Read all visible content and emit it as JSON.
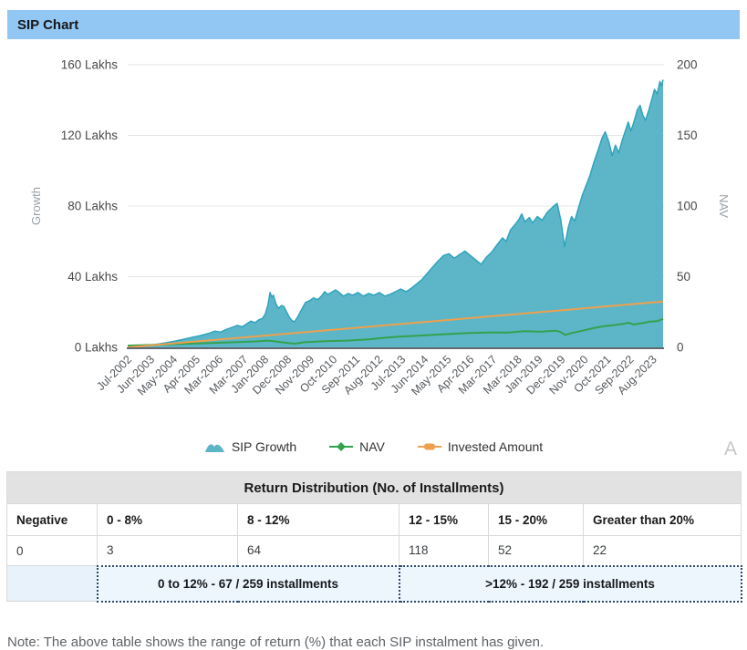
{
  "header": {
    "title": "SIP Chart"
  },
  "watermark": "A",
  "chart_data": {
    "type": "area",
    "title": "SIP Chart",
    "grid": "horizontal-only",
    "legend_position": "bottom-center",
    "colors": {
      "header_bg": "#92c7f3",
      "grid": "#e5e5e5",
      "axis_line": "#62696e",
      "tick_text": "#4a4a4a",
      "x_tick_text": "#55595e",
      "axis_title_text": "#9aa0a6"
    },
    "y_left": {
      "title": "Growth",
      "ticks": [
        "0 Lakhs",
        "40 Lakhs",
        "80 Lakhs",
        "120 Lakhs",
        "160 Lakhs"
      ],
      "tick_values": [
        0,
        40,
        80,
        120,
        160
      ],
      "range": [
        0,
        160
      ]
    },
    "y_right": {
      "title": "NAV",
      "ticks": [
        "0",
        "50",
        "100",
        "150",
        "200"
      ],
      "tick_values": [
        0,
        50,
        100,
        150,
        200
      ],
      "range": [
        0,
        200
      ]
    },
    "x_ticks": {
      "labels": [
        "Jul-2002",
        "Jun-2003",
        "May-2004",
        "Apr-2005",
        "Mar-2006",
        "Mar-2007",
        "Jan-2008",
        "Dec-2008",
        "Nov-2009",
        "Oct-2010",
        "Sep-2011",
        "Aug-2012",
        "Jul-2013",
        "Jun-2014",
        "May-2015",
        "Apr-2016",
        "Mar-2017",
        "Mar-2018",
        "Jan-2019",
        "Dec-2019",
        "Nov-2020",
        "Oct-2021",
        "Sep-2022",
        "Aug-2023"
      ],
      "months": [
        0,
        11,
        22,
        33,
        44,
        56,
        66,
        77,
        88,
        99,
        110,
        121,
        132,
        143,
        154,
        165,
        176,
        188,
        198,
        209,
        220,
        231,
        242,
        253
      ],
      "domain_months": 258
    },
    "series": [
      {
        "name": "SIP Growth",
        "type": "area",
        "axis": "left",
        "color": "#5cb6c8",
        "stroke": "#2fa3bd",
        "unit": "Lakhs",
        "points": [
          [
            0,
            0.2
          ],
          [
            0.02,
            0.6
          ],
          [
            0.04,
            1.2
          ],
          [
            0.06,
            2.0
          ],
          [
            0.075,
            2.8
          ],
          [
            0.09,
            3.6
          ],
          [
            0.105,
            4.6
          ],
          [
            0.12,
            5.6
          ],
          [
            0.135,
            6.6
          ],
          [
            0.15,
            7.8
          ],
          [
            0.163,
            9.2
          ],
          [
            0.173,
            8.6
          ],
          [
            0.185,
            10.2
          ],
          [
            0.196,
            11.4
          ],
          [
            0.205,
            12.4
          ],
          [
            0.214,
            11.6
          ],
          [
            0.222,
            13.2
          ],
          [
            0.23,
            14.8
          ],
          [
            0.238,
            14.0
          ],
          [
            0.245,
            15.6
          ],
          [
            0.252,
            16.4
          ],
          [
            0.257,
            19.0
          ],
          [
            0.262,
            24.0
          ],
          [
            0.266,
            31.0
          ],
          [
            0.269,
            28.5
          ],
          [
            0.272,
            29.5
          ],
          [
            0.277,
            24.5
          ],
          [
            0.282,
            22.0
          ],
          [
            0.287,
            23.7
          ],
          [
            0.292,
            23.0
          ],
          [
            0.297,
            20.0
          ],
          [
            0.302,
            17.0
          ],
          [
            0.307,
            15.1
          ],
          [
            0.312,
            14.5
          ],
          [
            0.318,
            17.5
          ],
          [
            0.325,
            21.5
          ],
          [
            0.332,
            25.4
          ],
          [
            0.34,
            26.5
          ],
          [
            0.347,
            28.0
          ],
          [
            0.355,
            27.0
          ],
          [
            0.362,
            29.0
          ],
          [
            0.368,
            31.5
          ],
          [
            0.374,
            30.0
          ],
          [
            0.38,
            31.0
          ],
          [
            0.388,
            32.5
          ],
          [
            0.395,
            31.0
          ],
          [
            0.403,
            29.0
          ],
          [
            0.412,
            30.5
          ],
          [
            0.42,
            29.5
          ],
          [
            0.43,
            31.0
          ],
          [
            0.44,
            29.0
          ],
          [
            0.45,
            30.5
          ],
          [
            0.46,
            29.5
          ],
          [
            0.47,
            31.0
          ],
          [
            0.48,
            29.0
          ],
          [
            0.49,
            30.0
          ],
          [
            0.5,
            31.5
          ],
          [
            0.51,
            33.0
          ],
          [
            0.52,
            31.5
          ],
          [
            0.53,
            33.5
          ],
          [
            0.54,
            36.0
          ],
          [
            0.55,
            38.5
          ],
          [
            0.56,
            42.0
          ],
          [
            0.57,
            45.5
          ],
          [
            0.58,
            49.0
          ],
          [
            0.59,
            52.0
          ],
          [
            0.6,
            53.0
          ],
          [
            0.61,
            50.5
          ],
          [
            0.62,
            52.5
          ],
          [
            0.63,
            54.5
          ],
          [
            0.64,
            52.0
          ],
          [
            0.65,
            49.5
          ],
          [
            0.66,
            47.0
          ],
          [
            0.67,
            51.0
          ],
          [
            0.68,
            54.0
          ],
          [
            0.69,
            58.0
          ],
          [
            0.7,
            62.0
          ],
          [
            0.707,
            60.0
          ],
          [
            0.715,
            66.5
          ],
          [
            0.722,
            69.0
          ],
          [
            0.73,
            72.0
          ],
          [
            0.736,
            75.5
          ],
          [
            0.742,
            71.0
          ],
          [
            0.75,
            73.5
          ],
          [
            0.756,
            70.5
          ],
          [
            0.765,
            74.0
          ],
          [
            0.774,
            72.0
          ],
          [
            0.784,
            76.5
          ],
          [
            0.794,
            79.5
          ],
          [
            0.802,
            81.5
          ],
          [
            0.809,
            72.0
          ],
          [
            0.816,
            57.0
          ],
          [
            0.823,
            68.0
          ],
          [
            0.829,
            74.0
          ],
          [
            0.835,
            71.5
          ],
          [
            0.842,
            79.0
          ],
          [
            0.849,
            86.0
          ],
          [
            0.856,
            91.5
          ],
          [
            0.863,
            97.0
          ],
          [
            0.871,
            105.0
          ],
          [
            0.879,
            112.0
          ],
          [
            0.886,
            118.5
          ],
          [
            0.892,
            122.0
          ],
          [
            0.899,
            116.0
          ],
          [
            0.905,
            108.5
          ],
          [
            0.911,
            114.5
          ],
          [
            0.917,
            110.0
          ],
          [
            0.924,
            117.5
          ],
          [
            0.93,
            123.0
          ],
          [
            0.935,
            127.5
          ],
          [
            0.94,
            122.5
          ],
          [
            0.946,
            128.0
          ],
          [
            0.952,
            134.5
          ],
          [
            0.957,
            137.0
          ],
          [
            0.962,
            131.5
          ],
          [
            0.967,
            128.5
          ],
          [
            0.973,
            134.0
          ],
          [
            0.979,
            140.5
          ],
          [
            0.984,
            146.0
          ],
          [
            0.989,
            143.5
          ],
          [
            0.994,
            150.5
          ],
          [
            0.997,
            148.0
          ],
          [
            1.0,
            151.5
          ]
        ]
      },
      {
        "name": "NAV",
        "type": "line",
        "axis": "right",
        "color": "#33a24c",
        "unit": "NAV",
        "points": [
          [
            0,
            1.2
          ],
          [
            0.05,
            1.8
          ],
          [
            0.1,
            2.4
          ],
          [
            0.15,
            3.0
          ],
          [
            0.2,
            3.6
          ],
          [
            0.24,
            4.2
          ],
          [
            0.262,
            4.8
          ],
          [
            0.272,
            4.4
          ],
          [
            0.3,
            3.0
          ],
          [
            0.312,
            2.6
          ],
          [
            0.33,
            3.6
          ],
          [
            0.37,
            4.4
          ],
          [
            0.41,
            4.8
          ],
          [
            0.45,
            5.6
          ],
          [
            0.475,
            6.6
          ],
          [
            0.5,
            7.4
          ],
          [
            0.55,
            8.4
          ],
          [
            0.6,
            9.4
          ],
          [
            0.64,
            10.2
          ],
          [
            0.68,
            10.6
          ],
          [
            0.71,
            10.4
          ],
          [
            0.74,
            11.4
          ],
          [
            0.77,
            11.0
          ],
          [
            0.8,
            11.8
          ],
          [
            0.809,
            10.8
          ],
          [
            0.817,
            8.8
          ],
          [
            0.83,
            10.2
          ],
          [
            0.85,
            11.8
          ],
          [
            0.87,
            13.6
          ],
          [
            0.89,
            15.0
          ],
          [
            0.91,
            15.8
          ],
          [
            0.925,
            16.6
          ],
          [
            0.935,
            17.4
          ],
          [
            0.945,
            16.2
          ],
          [
            0.96,
            17.0
          ],
          [
            0.975,
            18.2
          ],
          [
            0.99,
            18.6
          ],
          [
            1.0,
            20.2
          ]
        ]
      },
      {
        "name": "Invested Amount",
        "type": "line",
        "axis": "left",
        "color": "#eea04d",
        "unit": "Lakhs",
        "points": [
          [
            0,
            0
          ],
          [
            1,
            25.9
          ]
        ]
      }
    ]
  },
  "table": {
    "caption": "Return Distribution (No. of Installments)",
    "columns": [
      "Negative",
      "0 - 8%",
      "8 - 12%",
      "12 - 15%",
      "15 - 20%",
      "Greater than 20%"
    ],
    "values": [
      "0",
      "3",
      "64",
      "118",
      "52",
      "22"
    ],
    "summary": [
      {
        "label": "0 to 12% - 67 / 259 installments"
      },
      {
        "label": ">12% - 192 / 259 installments"
      }
    ]
  },
  "note": "Note: The above table shows the range of return (%) that each SIP instalment has given."
}
